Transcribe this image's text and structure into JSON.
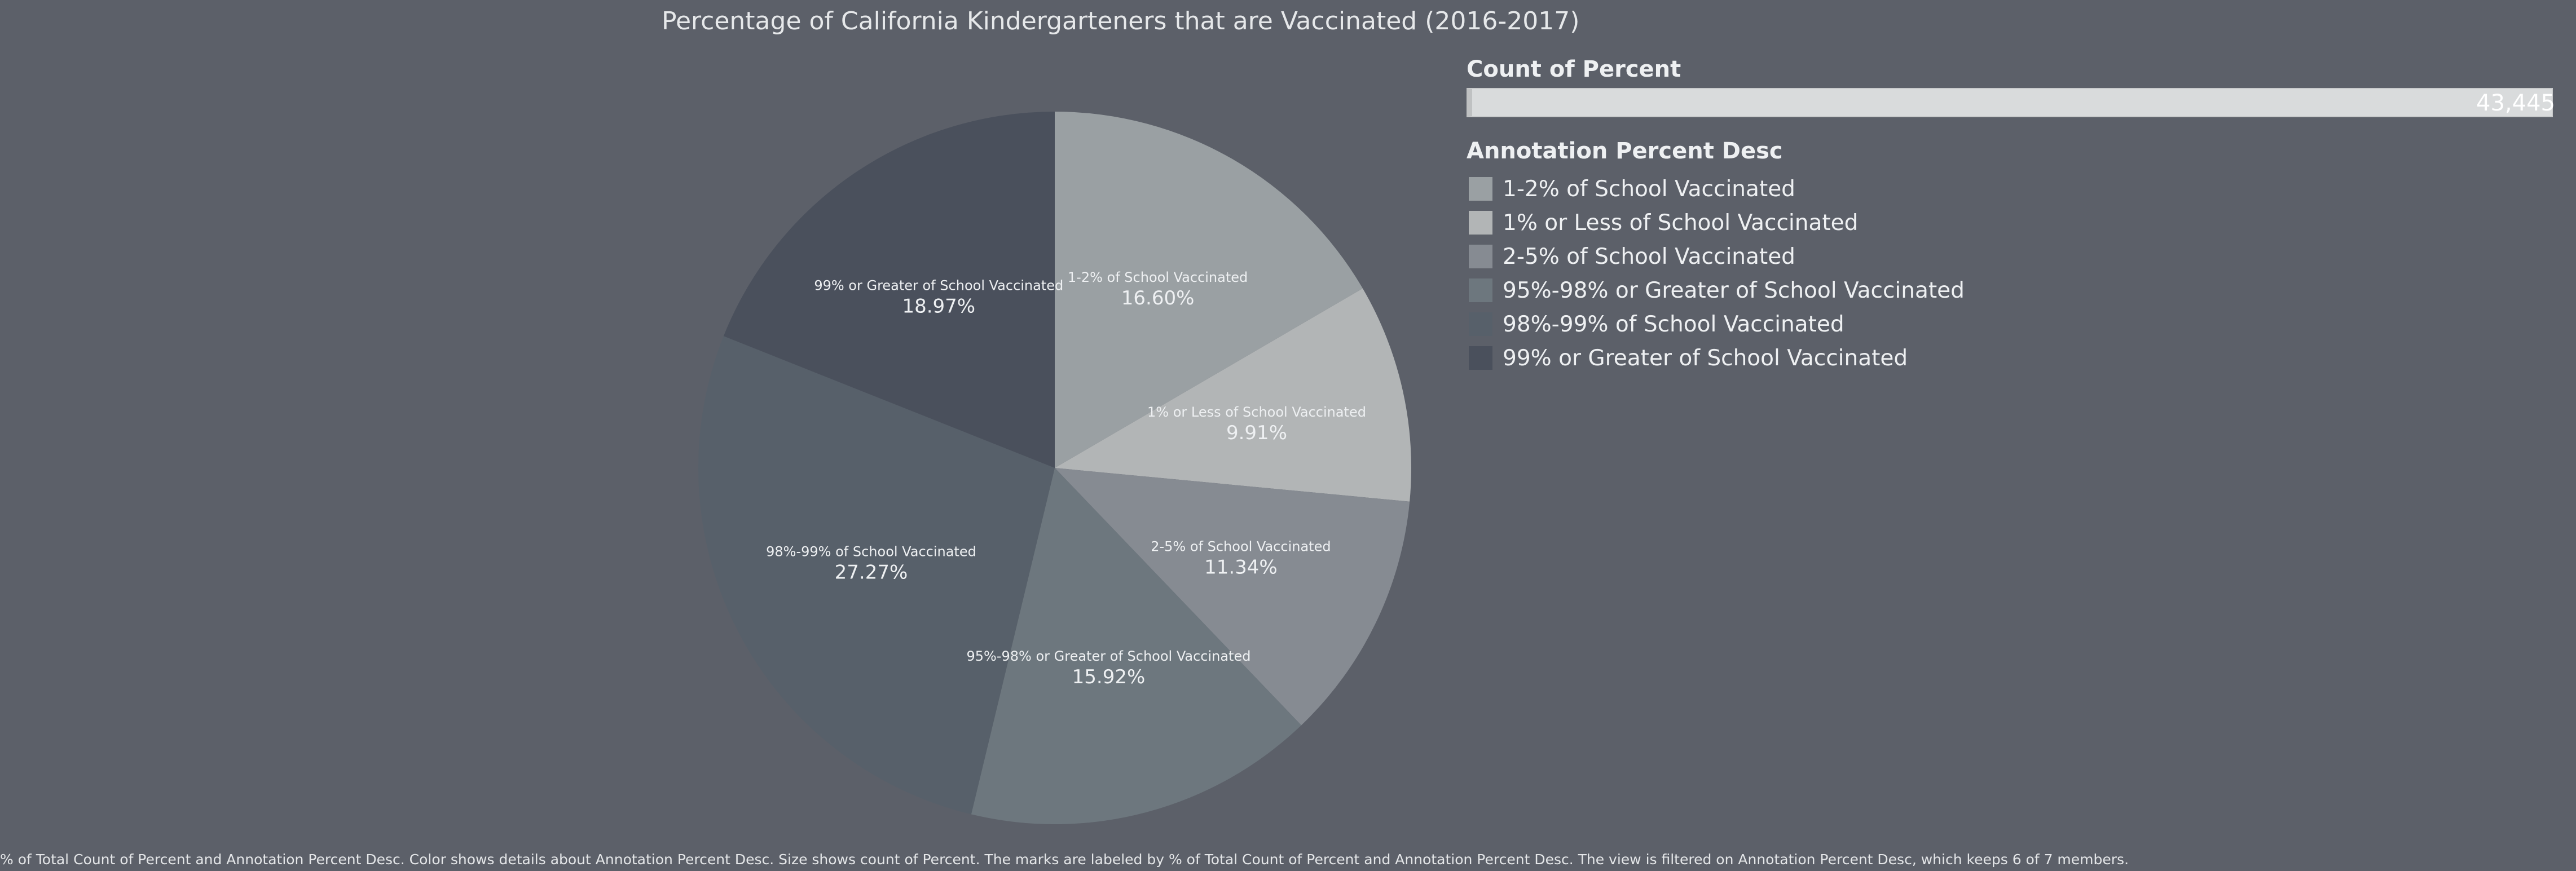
{
  "chart_data": {
    "type": "pie",
    "title": "Percentage of California Kindergarteners that are Vaccinated (2016-2017)",
    "slices": [
      {
        "label": "1-2% of School Vaccinated",
        "value": 16.6,
        "value_label": "16.60%",
        "color": "#9aa0a3"
      },
      {
        "label": "1% or Less of School Vaccinated",
        "value": 9.91,
        "value_label": "9.91%",
        "color": "#b2b5b6"
      },
      {
        "label": "2-5% of School Vaccinated",
        "value": 11.34,
        "value_label": "11.34%",
        "color": "#868b92"
      },
      {
        "label": "95%-98% or Greater of School Vaccinated",
        "value": 15.92,
        "value_label": "15.92%",
        "color": "#6d777e"
      },
      {
        "label": "98%-99% of School Vaccinated",
        "value": 27.27,
        "value_label": "27.27%",
        "color": "#57606a"
      },
      {
        "label": "99% or Greater of School Vaccinated",
        "value": 18.97,
        "value_label": "18.97%",
        "color": "#4a505c"
      }
    ],
    "size_legend": {
      "title": "Count of Percent",
      "value": "43,445"
    },
    "color_legend": {
      "title": "Annotation Percent Desc",
      "items": [
        {
          "label": "1-2% of School Vaccinated",
          "color": "#9aa0a3"
        },
        {
          "label": "1% or Less of School Vaccinated",
          "color": "#b2b5b6"
        },
        {
          "label": "2-5% of School Vaccinated",
          "color": "#868b92"
        },
        {
          "label": "95%-98% or Greater of School Vaccinated",
          "color": "#6d777e"
        },
        {
          "label": "98%-99% of School Vaccinated",
          "color": "#57606a"
        },
        {
          "label": "99% or Greater of School Vaccinated",
          "color": "#4a505c"
        }
      ]
    },
    "caption": "% of Total Count of Percent and Annotation Percent Desc.  Color shows details about Annotation Percent Desc.  Size shows count of Percent.  The marks are labeled by % of Total Count of Percent and Annotation Percent Desc. The view is filtered on Annotation Percent Desc, which keeps 6 of 7 members."
  },
  "colors": {
    "background": "#5c6069",
    "text": "#eceef0"
  }
}
